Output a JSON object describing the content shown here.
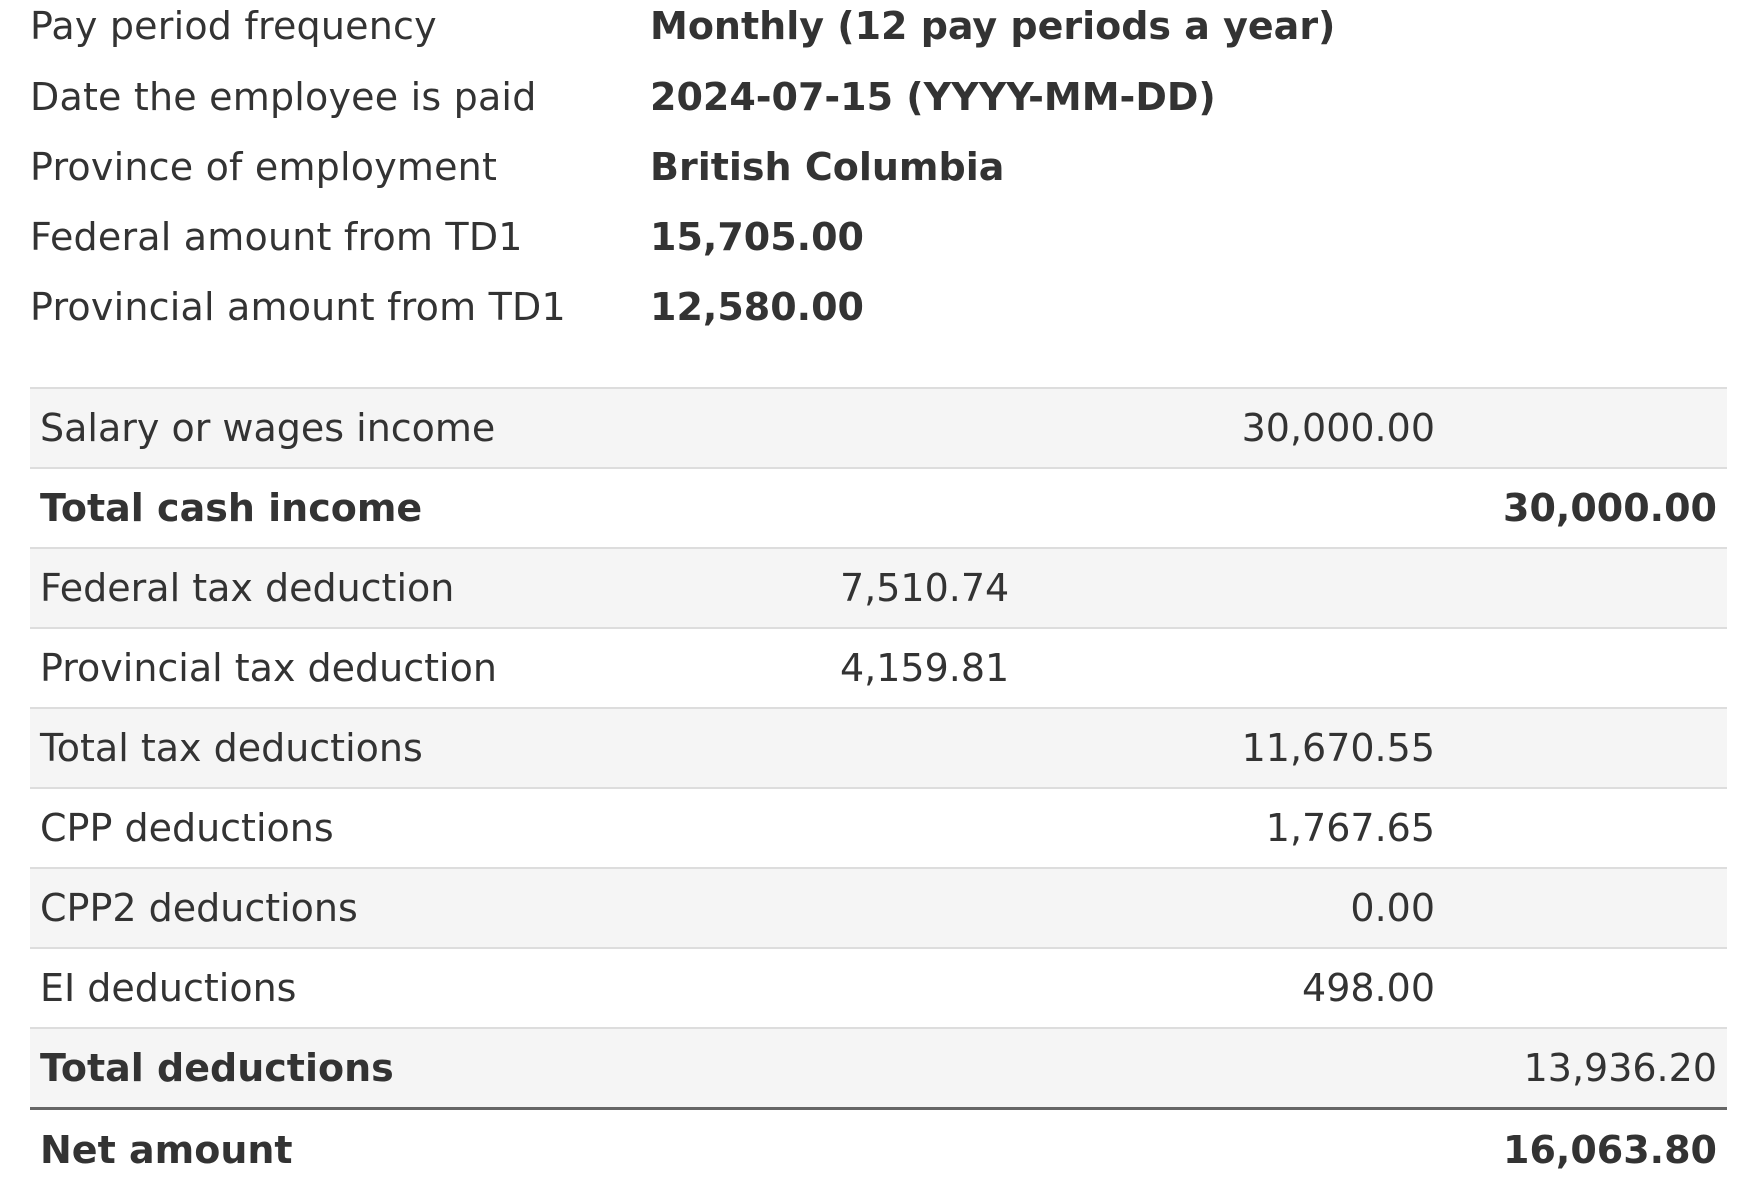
{
  "summary": [
    {
      "label": "Pay period frequency",
      "value": "Monthly (12 pay periods a year)"
    },
    {
      "label": "Date the employee is paid",
      "value": "2024-07-15 (YYYY-MM-DD)"
    },
    {
      "label": "Province of employment",
      "value": "British Columbia"
    },
    {
      "label": "Federal amount from TD1",
      "value": "15,705.00"
    },
    {
      "label": "Provincial amount from TD1",
      "value": "12,580.00"
    }
  ],
  "results": {
    "salary": {
      "label": "Salary or wages income",
      "b": "30,000.00"
    },
    "total_cash": {
      "label": "Total cash income",
      "c": "30,000.00"
    },
    "federal_tax": {
      "label": "Federal tax deduction",
      "a": "7,510.74"
    },
    "provincial_tax": {
      "label": "Provincial tax deduction",
      "a": "4,159.81"
    },
    "total_tax": {
      "label": "Total tax deductions",
      "b": "11,670.55"
    },
    "cpp": {
      "label": "CPP deductions",
      "b": "1,767.65"
    },
    "cpp2": {
      "label": "CPP2 deductions",
      "b": "0.00"
    },
    "ei": {
      "label": "EI deductions",
      "b": "498.00"
    },
    "total_deductions": {
      "label": "Total deductions",
      "c": "13,936.20"
    },
    "net": {
      "label": "Net amount",
      "c": "16,063.80"
    }
  }
}
